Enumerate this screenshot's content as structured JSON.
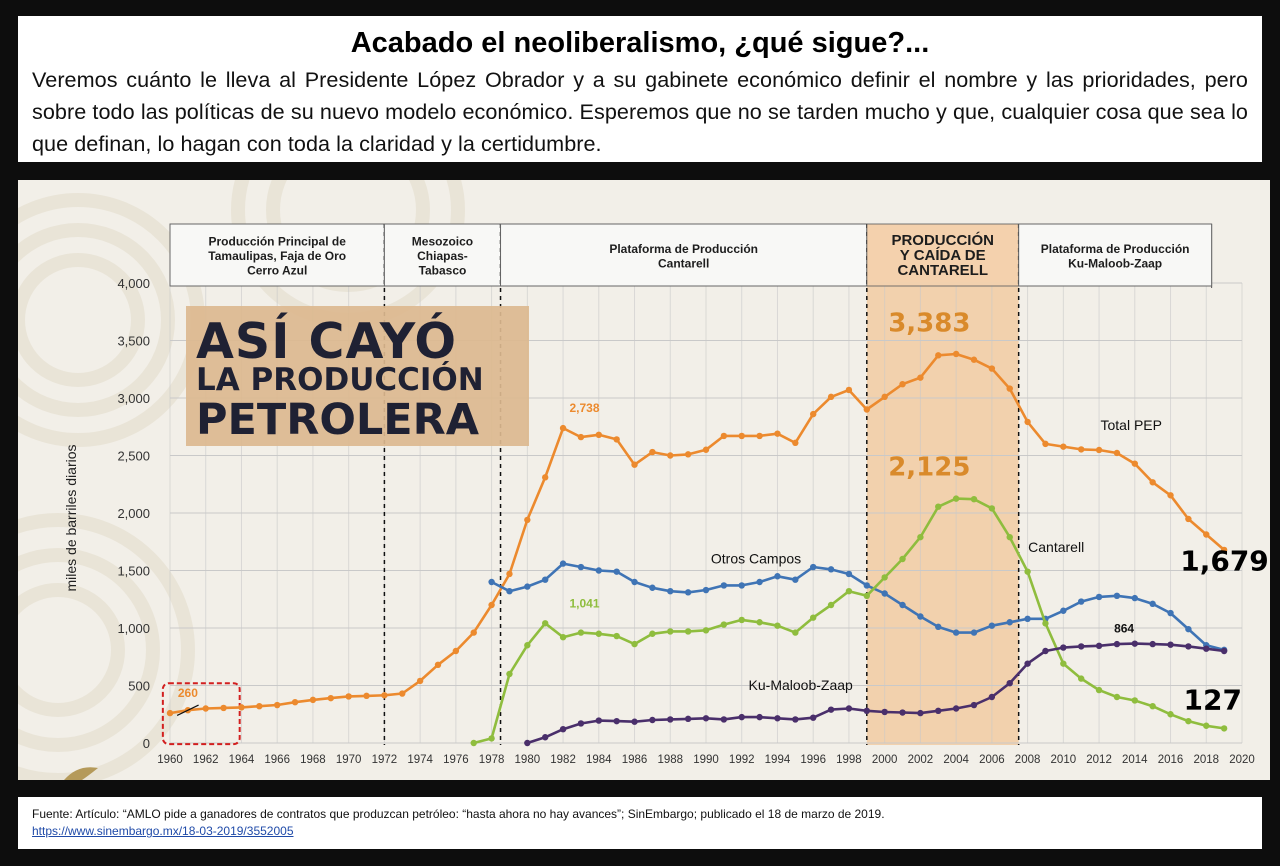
{
  "header": {
    "title": "Acabado el neoliberalismo, ¿qué sigue?...",
    "body": "Veremos cuánto le lleva al Presidente López Obrador y a su gabinete económico definir el nombre y las prioridades, pero sobre todo las políticas de su nuevo modelo económico. Esperemos que no se tarden mucho y que, cualquier cosa que sea lo que definan, lo hagan con toda la claridad y la certidumbre."
  },
  "overlay_title": [
    "ASÍ CAYÓ",
    "LA PRODUCCIÓN",
    "PETROLERA"
  ],
  "colors": {
    "total": "#ec8a2e",
    "otros": "#3f74b5",
    "cantarell": "#8fbd3e",
    "kmz": "#4a2f6b",
    "highlight_band": "#f1c79a",
    "overlay_box": "#dcb88f",
    "overlay_text": "#1f2133",
    "grid": "#c9c9c9"
  },
  "chart_data": {
    "type": "line",
    "ylabel": "miles de barriles diarios",
    "xlabel": "",
    "xlim": [
      1960,
      2020
    ],
    "ylim": [
      0,
      4000
    ],
    "x_ticks": [
      "1960",
      "1962",
      "1964",
      "1966",
      "1968",
      "1970",
      "1972",
      "1974",
      "1976",
      "1978",
      "1980",
      "1982",
      "1984",
      "1986",
      "1988",
      "1990",
      "1992",
      "1994",
      "1996",
      "1998",
      "2000",
      "2002",
      "2004",
      "2006",
      "2008",
      "2010",
      "2012",
      "2014",
      "2016",
      "2018",
      "2020"
    ],
    "y_ticks": [
      "0",
      "500",
      "1,000",
      "1,500",
      "2,000",
      "2,500",
      "3,000",
      "3,500",
      "4,000"
    ],
    "periods": [
      {
        "label": "Producción Principal de Tamaulipas, Faja de Oro Cerro Azul",
        "lines": [
          "Producción Principal de",
          "Tamaulipas, Faja de Oro",
          "Cerro Azul"
        ],
        "start": 1960,
        "end": 1972
      },
      {
        "label": "Mesozoico Chiapas-Tabasco",
        "lines": [
          "Mesozoico",
          "Chiapas-",
          "Tabasco"
        ],
        "start": 1972,
        "end": 1978.5
      },
      {
        "label": "Plataforma de Producción Cantarell",
        "lines": [
          "Plataforma de Producción",
          "Cantarell"
        ],
        "start": 1978.5,
        "end": 1999
      },
      {
        "label": "PRODUCCIÓN Y CAÍDA DE CANTARELL",
        "lines": [
          "PRODUCCIÓN",
          "Y CAÍDA DE",
          "CANTARELL"
        ],
        "start": 1999,
        "end": 2007.5,
        "highlight": true
      },
      {
        "label": "Plataforma de Producción Ku-Maloob-Zaap",
        "lines": [
          "Plataforma de Producción",
          "Ku-Maloob-Zaap"
        ],
        "start": 2007.5,
        "end": 2018.3
      }
    ],
    "series": [
      {
        "name": "Total PEP",
        "color_key": "total",
        "x": [
          1960,
          1961,
          1962,
          1963,
          1964,
          1965,
          1966,
          1967,
          1968,
          1969,
          1970,
          1971,
          1972,
          1973,
          1974,
          1975,
          1976,
          1977,
          1978,
          1979,
          1980,
          1981,
          1982,
          1983,
          1984,
          1985,
          1986,
          1987,
          1988,
          1989,
          1990,
          1991,
          1992,
          1993,
          1994,
          1995,
          1996,
          1997,
          1998,
          1999,
          2000,
          2001,
          2002,
          2003,
          2004,
          2005,
          2006,
          2007,
          2008,
          2009,
          2010,
          2011,
          2012,
          2013,
          2014,
          2015,
          2016,
          2017,
          2018,
          2019
        ],
        "values": [
          260,
          285,
          300,
          305,
          310,
          320,
          330,
          355,
          375,
          390,
          405,
          410,
          415,
          430,
          540,
          680,
          800,
          960,
          1200,
          1470,
          1940,
          2310,
          2738,
          2660,
          2680,
          2640,
          2420,
          2530,
          2500,
          2510,
          2550,
          2670,
          2670,
          2670,
          2690,
          2610,
          2860,
          3010,
          3070,
          2900,
          3010,
          3120,
          3177,
          3371,
          3383,
          3333,
          3256,
          3082,
          2792,
          2601,
          2577,
          2553,
          2548,
          2522,
          2429,
          2267,
          2154,
          1948,
          1813,
          1679
        ]
      },
      {
        "name": "Otros Campos",
        "color_key": "otros",
        "x": [
          1978,
          1979,
          1980,
          1981,
          1982,
          1983,
          1984,
          1985,
          1986,
          1987,
          1988,
          1989,
          1990,
          1991,
          1992,
          1993,
          1994,
          1995,
          1996,
          1997,
          1998,
          1999,
          2000,
          2001,
          2002,
          2003,
          2004,
          2005,
          2006,
          2007,
          2008,
          2009,
          2010,
          2011,
          2012,
          2013,
          2014,
          2015,
          2016,
          2017,
          2018,
          2019
        ],
        "values": [
          1400,
          1320,
          1360,
          1420,
          1560,
          1530,
          1500,
          1490,
          1400,
          1350,
          1320,
          1310,
          1330,
          1370,
          1370,
          1400,
          1450,
          1420,
          1530,
          1510,
          1470,
          1370,
          1300,
          1200,
          1100,
          1010,
          960,
          960,
          1020,
          1050,
          1080,
          1080,
          1150,
          1230,
          1270,
          1280,
          1260,
          1210,
          1130,
          990,
          850,
          810
        ]
      },
      {
        "name": "Cantarell",
        "color_key": "cantarell",
        "x": [
          1977,
          1978,
          1979,
          1980,
          1981,
          1982,
          1983,
          1984,
          1985,
          1986,
          1987,
          1988,
          1989,
          1990,
          1991,
          1992,
          1993,
          1994,
          1995,
          1996,
          1997,
          1998,
          1999,
          2000,
          2001,
          2002,
          2003,
          2004,
          2005,
          2006,
          2007,
          2008,
          2009,
          2010,
          2011,
          2012,
          2013,
          2014,
          2015,
          2016,
          2017,
          2018,
          2019
        ],
        "values": [
          0,
          40,
          600,
          850,
          1041,
          920,
          960,
          950,
          930,
          860,
          950,
          970,
          970,
          980,
          1030,
          1070,
          1050,
          1020,
          960,
          1090,
          1200,
          1320,
          1280,
          1440,
          1600,
          1790,
          2055,
          2125,
          2120,
          2040,
          1790,
          1490,
          1040,
          690,
          560,
          460,
          400,
          370,
          320,
          250,
          190,
          150,
          127
        ]
      },
      {
        "name": "Ku-Maloob-Zaap",
        "color_key": "kmz",
        "x": [
          1980,
          1981,
          1982,
          1983,
          1984,
          1985,
          1986,
          1987,
          1988,
          1989,
          1990,
          1991,
          1992,
          1993,
          1994,
          1995,
          1996,
          1997,
          1998,
          1999,
          2000,
          2001,
          2002,
          2003,
          2004,
          2005,
          2006,
          2007,
          2008,
          2009,
          2010,
          2011,
          2012,
          2013,
          2014,
          2015,
          2016,
          2017,
          2018,
          2019
        ],
        "values": [
          0,
          50,
          120,
          170,
          195,
          190,
          185,
          200,
          205,
          210,
          215,
          205,
          225,
          225,
          215,
          205,
          220,
          290,
          300,
          280,
          270,
          265,
          260,
          280,
          300,
          330,
          400,
          520,
          690,
          800,
          830,
          840,
          845,
          860,
          864,
          860,
          855,
          840,
          820,
          800
        ]
      }
    ],
    "annotations": [
      {
        "text": "260",
        "x": 1961,
        "y": 400,
        "color_key": "total",
        "size": "small"
      },
      {
        "text": "2,738",
        "x": 1983.2,
        "y": 2880,
        "color_key": "total",
        "size": "small"
      },
      {
        "text": "1,041",
        "x": 1983.2,
        "y": 1180,
        "color_key": "cantarell",
        "size": "small"
      },
      {
        "text": "3,383",
        "x": 2002.5,
        "y": 3580,
        "color_key": "total",
        "size": "big"
      },
      {
        "text": "2,125",
        "x": 2002.5,
        "y": 2325,
        "color_key": "total",
        "size": "big"
      },
      {
        "text": "864",
        "x": 2013.4,
        "y": 960,
        "color_key": "kmz",
        "size": "small"
      },
      {
        "text": "Total PEP",
        "x": 2013.8,
        "y": 2720,
        "color_key": "series_label",
        "size": "label"
      },
      {
        "text": "Otros Campos",
        "x": 1992.8,
        "y": 1560,
        "color_key": "series_label",
        "size": "label"
      },
      {
        "text": "Cantarell",
        "x": 2009.6,
        "y": 1660,
        "color_key": "series_label",
        "size": "label"
      },
      {
        "text": "Ku-Maloob-Zaap",
        "x": 1995.3,
        "y": 460,
        "color_key": "series_label",
        "size": "label"
      },
      {
        "text": "1,679",
        "x": 2021.5,
        "y": 1500,
        "color_key": "end",
        "size": "end"
      },
      {
        "text": "127",
        "x": 2020,
        "y": 290,
        "color_key": "end",
        "size": "end"
      }
    ],
    "grid": true,
    "legend": "none"
  },
  "footer": {
    "source": "Fuente: Artículo: “AMLO pide a ganadores de contratos que produzcan petróleo: “hasta ahora no hay avances”; SinEmbargo; publicado el 18 de marzo de 2019.",
    "url": "https://www.sinembargo.mx/18-03-2019/3552005"
  }
}
